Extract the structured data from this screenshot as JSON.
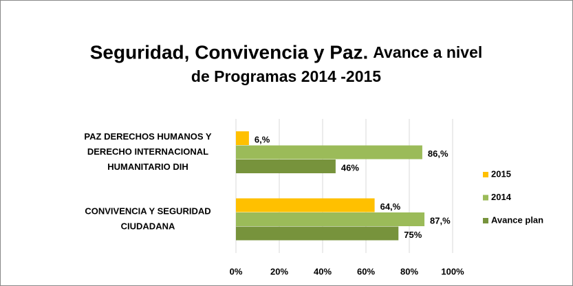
{
  "chart_data": {
    "type": "bar",
    "orientation": "horizontal",
    "title": "Seguridad, Convivencia y Paz.",
    "subtitle": "Avance a nivel de Programas 2014 -2015",
    "categories": [
      "PAZ DERECHOS HUMANOS Y DERECHO INTERNACIONAL HUMANITARIO DIH",
      "CONVIVENCIA Y SEGURIDAD CIUDADANA"
    ],
    "series": [
      {
        "name": "2015",
        "color": "#ffc000",
        "values": [
          6,
          64
        ],
        "value_labels": [
          "6,%",
          "64,%"
        ]
      },
      {
        "name": "2014",
        "color": "#9bbb59",
        "values": [
          86,
          87
        ],
        "value_labels": [
          "86,%",
          "87,%"
        ]
      },
      {
        "name": "Avance plan",
        "color": "#77933c",
        "values": [
          46,
          75
        ],
        "value_labels": [
          "46%",
          "75%"
        ]
      }
    ],
    "xlim": [
      0,
      100
    ],
    "xticks": [
      {
        "value": 0,
        "label": "0%"
      },
      {
        "value": 20,
        "label": "20%"
      },
      {
        "value": 40,
        "label": "40%"
      },
      {
        "value": 60,
        "label": "60%"
      },
      {
        "value": 80,
        "label": "80%"
      },
      {
        "value": 100,
        "label": "100%"
      }
    ],
    "grid": true,
    "legend": "right"
  }
}
